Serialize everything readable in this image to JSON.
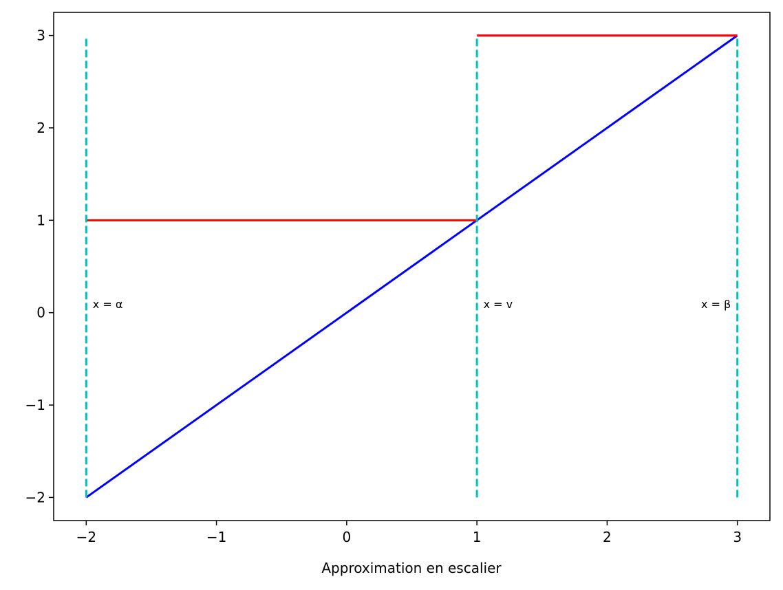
{
  "chart_data": {
    "type": "line",
    "title": "",
    "xlabel": "Approximation en escalier",
    "ylabel": "",
    "xlim": [
      -2.25,
      3.25
    ],
    "ylim": [
      -2.25,
      3.25
    ],
    "xticks": [
      -2,
      -1,
      0,
      1,
      2,
      3
    ],
    "yticks": [
      -2,
      -1,
      0,
      1,
      2,
      3
    ],
    "xtick_labels": [
      "−2",
      "−1",
      "0",
      "1",
      "2",
      "3"
    ],
    "ytick_labels": [
      "−2",
      "−1",
      "0",
      "1",
      "2",
      "3"
    ],
    "grid": false,
    "legend": "none",
    "series": [
      {
        "color": "#0000ff",
        "style": "solid",
        "x": [
          -2,
          3
        ],
        "y": [
          -2,
          3
        ]
      },
      {
        "color": "#ff0000",
        "style": "solid",
        "x": [
          -2,
          1
        ],
        "y": [
          1,
          1
        ]
      },
      {
        "color": "#ff0000",
        "style": "solid",
        "x": [
          1,
          3
        ],
        "y": [
          3,
          3
        ]
      },
      {
        "color": "#00bfbf",
        "style": "dashed",
        "x": [
          -2,
          -2
        ],
        "y": [
          -2,
          3
        ]
      },
      {
        "color": "#00bfbf",
        "style": "dashed",
        "x": [
          1,
          1
        ],
        "y": [
          -2,
          3
        ]
      },
      {
        "color": "#00bfbf",
        "style": "dashed",
        "x": [
          3,
          3
        ],
        "y": [
          -2,
          3
        ]
      }
    ],
    "annotations": [
      {
        "text": "x = α",
        "x": -1.95,
        "y": 0.05,
        "anchor": "start"
      },
      {
        "text": "x = v",
        "x": 1.05,
        "y": 0.05,
        "anchor": "start"
      },
      {
        "text": "x = β",
        "x": 2.95,
        "y": 0.05,
        "anchor": "end"
      }
    ]
  }
}
